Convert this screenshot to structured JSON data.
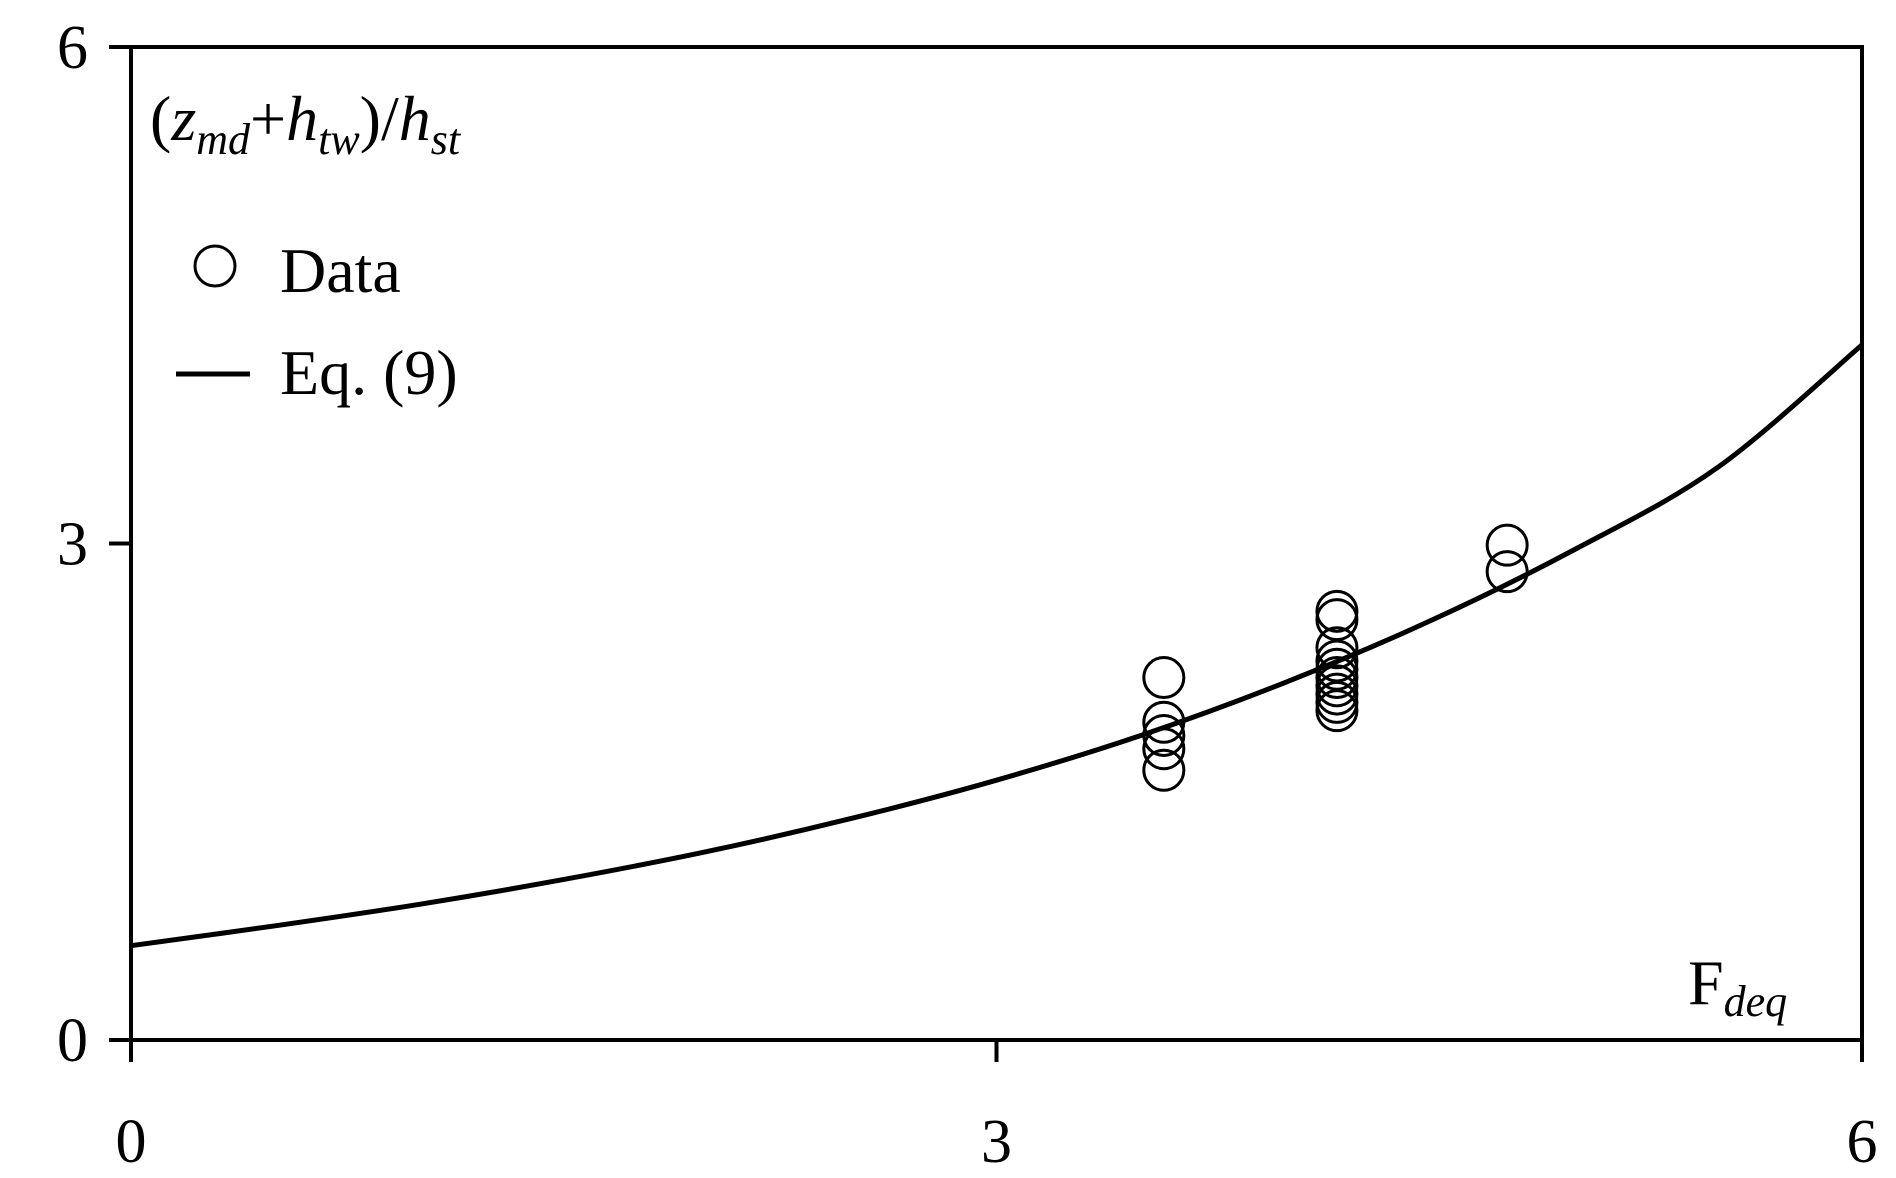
{
  "chart_data": {
    "type": "scatter",
    "xlim": [
      0,
      6
    ],
    "ylim": [
      0,
      6
    ],
    "x_ticks": [
      "0",
      "3",
      "6"
    ],
    "y_ticks": [
      "0",
      "3",
      "6"
    ],
    "xlabel": {
      "main": "F",
      "sub": "deq"
    },
    "ylabel": {
      "open": "(",
      "z": "z",
      "z_sub": "md",
      "plus": "+",
      "h1": "h",
      "h1_sub": "tw",
      "mid": ")/",
      "h2": "h",
      "h2_sub": "st"
    },
    "legend": {
      "position": "top-left",
      "data_label": "Data",
      "curve_label": "Eq. (9)"
    },
    "grid": false,
    "series": [
      {
        "name": "Data",
        "kind": "scatter",
        "points": [
          {
            "x": 3.58,
            "y": 2.19
          },
          {
            "x": 3.58,
            "y": 1.92
          },
          {
            "x": 3.58,
            "y": 1.84
          },
          {
            "x": 3.58,
            "y": 1.76
          },
          {
            "x": 3.58,
            "y": 1.63
          },
          {
            "x": 4.18,
            "y": 2.59
          },
          {
            "x": 4.18,
            "y": 2.54
          },
          {
            "x": 4.18,
            "y": 2.37
          },
          {
            "x": 4.18,
            "y": 2.29
          },
          {
            "x": 4.18,
            "y": 2.24
          },
          {
            "x": 4.18,
            "y": 2.19
          },
          {
            "x": 4.18,
            "y": 2.14
          },
          {
            "x": 4.18,
            "y": 2.09
          },
          {
            "x": 4.18,
            "y": 2.04
          },
          {
            "x": 4.18,
            "y": 1.99
          },
          {
            "x": 4.77,
            "y": 2.99
          },
          {
            "x": 4.77,
            "y": 2.83
          }
        ]
      },
      {
        "name": "Eq. (9)",
        "kind": "line",
        "x": [
          0,
          0.5,
          1,
          1.5,
          2,
          2.5,
          3,
          3.5,
          4,
          4.5,
          5,
          5.5,
          6
        ],
        "y": [
          0.57,
          0.69,
          0.82,
          0.97,
          1.14,
          1.34,
          1.57,
          1.84,
          2.16,
          2.53,
          2.96,
          3.46,
          4.2
        ]
      }
    ]
  }
}
